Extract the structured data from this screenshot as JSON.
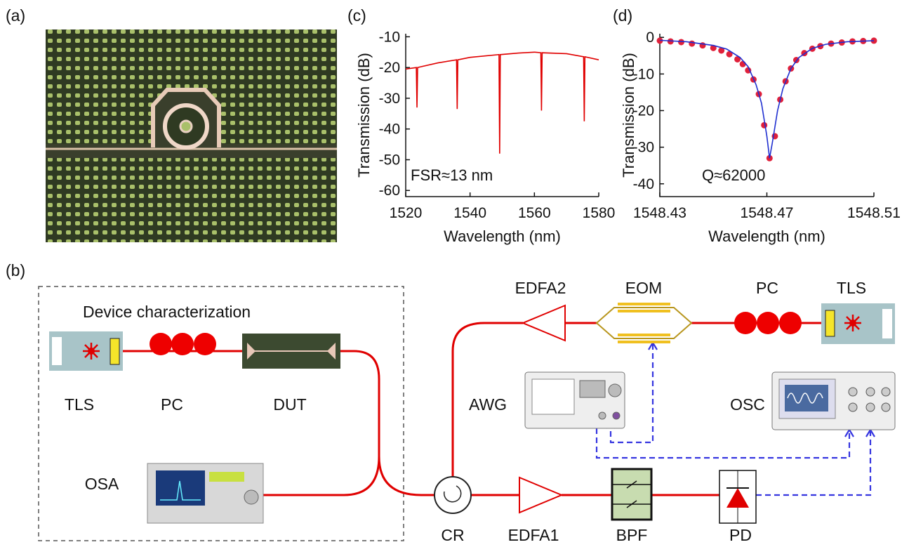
{
  "panels": {
    "a": "(a)",
    "b": "(b)",
    "c": "(c)",
    "d": "(d)"
  },
  "diagram": {
    "title": "Device characterization",
    "labels": [
      "TLS",
      "PC",
      "DUT",
      "OSA",
      "CR",
      "EDFA1",
      "BPF",
      "PD",
      "TLS",
      "PC",
      "EOM",
      "EDFA2",
      "AWG",
      "OSC"
    ]
  },
  "chart_data": [
    {
      "type": "line",
      "xlabel": "Wavelength (nm)",
      "ylabel": "Transmission (dB)",
      "annotation": "FSR≈13 nm",
      "xlim": [
        1520,
        1580
      ],
      "xticks": [
        1520,
        1540,
        1560,
        1580
      ],
      "ylim": [
        -62,
        -9
      ],
      "yticks": [
        -60,
        -50,
        -40,
        -30,
        -20,
        -10
      ],
      "series": [
        {
          "color": "#e00000",
          "style": "line",
          "x": [
            1520,
            1523.3,
            1523.5,
            1523.7,
            1530,
            1535.8,
            1536,
            1536.2,
            1540,
            1549,
            1549.2,
            1549.4,
            1555,
            1560,
            1562,
            1562.2,
            1562.4,
            1570,
            1575.3,
            1575.5,
            1575.7,
            1580
          ],
          "values": [
            -20.5,
            -20,
            -33,
            -20,
            -18.5,
            -17.5,
            -33.5,
            -17.5,
            -16.7,
            -15.8,
            -48,
            -15.8,
            -15.3,
            -15,
            -15.2,
            -34,
            -15.2,
            -15.5,
            -16.5,
            -37.5,
            -16.5,
            -17.5
          ]
        }
      ]
    },
    {
      "type": "line",
      "xlabel": "Wavelength (nm)",
      "ylabel": "Transmission (dB)",
      "annotation": "Q≈62000",
      "xlim": [
        1548.43,
        1548.51
      ],
      "xticks": [
        1548.43,
        1548.47,
        1548.51
      ],
      "ylim": [
        -43.5,
        1
      ],
      "yticks": [
        -40,
        -30,
        -20,
        -10,
        0
      ],
      "series": [
        {
          "color": "#e0203a",
          "style": "markers",
          "x": [
            1548.43,
            1548.434,
            1548.438,
            1548.442,
            1548.446,
            1548.45,
            1548.453,
            1548.456,
            1548.459,
            1548.461,
            1548.463,
            1548.465,
            1548.467,
            1548.469,
            1548.471,
            1548.473,
            1548.475,
            1548.477,
            1548.479,
            1548.481,
            1548.484,
            1548.487,
            1548.49,
            1548.494,
            1548.498,
            1548.502,
            1548.506,
            1548.51
          ],
          "values": [
            -0.9,
            -1.1,
            -1.3,
            -1.7,
            -2.2,
            -2.9,
            -3.6,
            -4.6,
            -6,
            -7.3,
            -9,
            -11.5,
            -15.5,
            -24,
            -33,
            -27,
            -17,
            -12,
            -8.5,
            -6.2,
            -4.3,
            -3.1,
            -2.4,
            -1.7,
            -1.4,
            -1.1,
            -1,
            -0.9
          ]
        },
        {
          "color": "#1f2fd0",
          "style": "line",
          "x": [
            1548.43,
            1548.44,
            1548.45,
            1548.455,
            1548.46,
            1548.463,
            1548.466,
            1548.468,
            1548.47,
            1548.471,
            1548.472,
            1548.474,
            1548.476,
            1548.479,
            1548.482,
            1548.487,
            1548.492,
            1548.5,
            1548.51
          ],
          "values": [
            -0.8,
            -1.2,
            -2.2,
            -3.2,
            -5.5,
            -8,
            -13,
            -18,
            -27,
            -33,
            -29,
            -20,
            -14,
            -8.5,
            -5.5,
            -3,
            -1.9,
            -1.2,
            -0.9
          ]
        }
      ]
    }
  ]
}
